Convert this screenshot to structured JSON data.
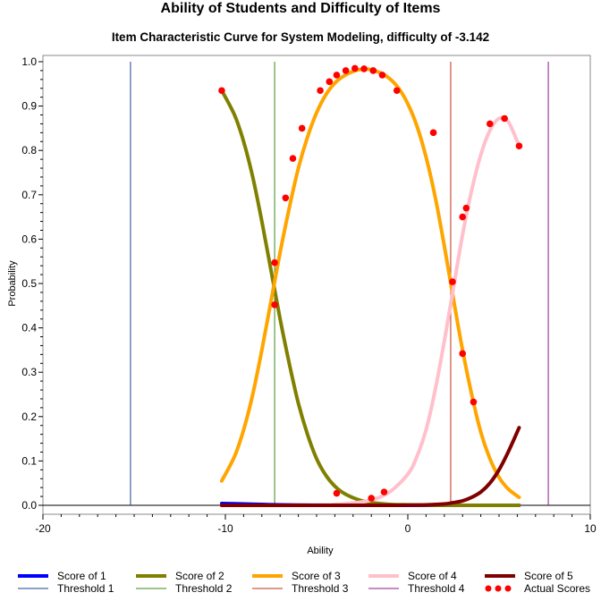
{
  "chart_data": {
    "type": "line",
    "title": "Ability of Students and Difficulty of Items",
    "subtitle": "Item Characteristic Curve for System Modeling, difficulty of -3.142",
    "xlabel": "Ability",
    "ylabel": "Probability",
    "xlim": [
      -20,
      10
    ],
    "ylim": [
      0,
      1
    ],
    "x_ticks": [
      -20,
      -10,
      0,
      10
    ],
    "y_ticks": [
      0.0,
      0.1,
      0.2,
      0.3,
      0.4,
      0.5,
      0.6,
      0.7,
      0.8,
      0.9,
      1.0
    ],
    "grid": false,
    "legend_position": "bottom",
    "series": [
      {
        "name": "Score of 1",
        "color": "#0000ff",
        "x": [
          -10.2,
          -9,
          -8,
          -7,
          -6,
          -5,
          -4,
          -3,
          -2,
          -1,
          0,
          1,
          2,
          3,
          4,
          5,
          6.1
        ],
        "values": [
          0.004,
          0.003,
          0.002,
          0.001,
          0.0005,
          0.0003,
          0.0001,
          0,
          0,
          0,
          0,
          0,
          0,
          0,
          0,
          0,
          0
        ]
      },
      {
        "name": "Score of 2",
        "color": "#808000",
        "x": [
          -10.2,
          -9.5,
          -9,
          -8.5,
          -8,
          -7.5,
          -7,
          -6.5,
          -6,
          -5.5,
          -5,
          -4.5,
          -4,
          -3.5,
          -3,
          -2.5,
          -2,
          -1,
          0,
          1,
          2,
          3,
          4,
          5,
          6.1
        ],
        "values": [
          0.935,
          0.88,
          0.82,
          0.74,
          0.64,
          0.53,
          0.42,
          0.32,
          0.23,
          0.16,
          0.105,
          0.068,
          0.043,
          0.027,
          0.017,
          0.01,
          0.006,
          0.002,
          0.001,
          0.0004,
          0.0001,
          0,
          0,
          0,
          0
        ]
      },
      {
        "name": "Score of 3",
        "color": "#ffa500",
        "x": [
          -10.2,
          -9.5,
          -9,
          -8.5,
          -8,
          -7.5,
          -7,
          -6.5,
          -6,
          -5.5,
          -5,
          -4.5,
          -4,
          -3.5,
          -3,
          -2.5,
          -2,
          -1.5,
          -1,
          -0.5,
          0,
          0.5,
          1,
          1.5,
          2,
          2.5,
          3,
          3.5,
          4,
          4.5,
          5,
          5.5,
          6.1
        ],
        "values": [
          0.055,
          0.11,
          0.17,
          0.25,
          0.35,
          0.46,
          0.57,
          0.67,
          0.76,
          0.83,
          0.885,
          0.925,
          0.952,
          0.968,
          0.978,
          0.983,
          0.982,
          0.975,
          0.962,
          0.94,
          0.905,
          0.855,
          0.785,
          0.695,
          0.585,
          0.465,
          0.35,
          0.25,
          0.165,
          0.105,
          0.063,
          0.037,
          0.018
        ]
      },
      {
        "name": "Score of 4",
        "color": "#ffc0cb",
        "x": [
          -10.2,
          -5,
          -4,
          -3,
          -2,
          -1,
          0,
          0.5,
          1,
          1.5,
          2,
          2.5,
          3,
          3.5,
          4,
          4.5,
          5,
          5.5,
          6.1
        ],
        "values": [
          0,
          0,
          0.002,
          0.005,
          0.012,
          0.03,
          0.07,
          0.11,
          0.17,
          0.26,
          0.37,
          0.49,
          0.61,
          0.71,
          0.79,
          0.845,
          0.872,
          0.865,
          0.81
        ]
      },
      {
        "name": "Score of 5",
        "color": "#800000",
        "x": [
          -10.2,
          -2,
          0,
          1,
          2,
          2.5,
          3,
          3.5,
          4,
          4.5,
          5,
          5.5,
          6.1
        ],
        "values": [
          0,
          0,
          0.0005,
          0.001,
          0.003,
          0.006,
          0.01,
          0.018,
          0.03,
          0.05,
          0.08,
          0.12,
          0.175
        ]
      }
    ],
    "thresholds": [
      {
        "name": "Threshold 1",
        "x": -15.2,
        "color": "#1f3f8f"
      },
      {
        "name": "Threshold 2",
        "x": -7.3,
        "color": "#3a8a1a"
      },
      {
        "name": "Threshold 3",
        "x": 2.35,
        "color": "#c0301a"
      },
      {
        "name": "Threshold 4",
        "x": 7.7,
        "color": "#8a1a8a"
      }
    ],
    "actual_scores": {
      "name": "Actual Scores",
      "color": "#ff0000",
      "points": [
        [
          -10.2,
          0.935
        ],
        [
          -7.3,
          0.547
        ],
        [
          -7.3,
          0.452
        ],
        [
          -6.7,
          0.693
        ],
        [
          -6.3,
          0.782
        ],
        [
          -5.8,
          0.85
        ],
        [
          -4.8,
          0.935
        ],
        [
          -4.3,
          0.955
        ],
        [
          -3.9,
          0.97
        ],
        [
          -3.4,
          0.98
        ],
        [
          -2.9,
          0.985
        ],
        [
          -2.4,
          0.984
        ],
        [
          -1.9,
          0.98
        ],
        [
          -1.4,
          0.97
        ],
        [
          -0.6,
          0.935
        ],
        [
          1.4,
          0.84
        ],
        [
          3.2,
          0.67
        ],
        [
          2.45,
          0.504
        ],
        [
          3.0,
          0.342
        ],
        [
          3.6,
          0.233
        ],
        [
          -3.9,
          0.027
        ],
        [
          -2.0,
          0.016
        ],
        [
          -1.3,
          0.03
        ],
        [
          3.0,
          0.65
        ],
        [
          4.5,
          0.86
        ],
        [
          5.3,
          0.872
        ],
        [
          6.1,
          0.81
        ]
      ]
    }
  }
}
